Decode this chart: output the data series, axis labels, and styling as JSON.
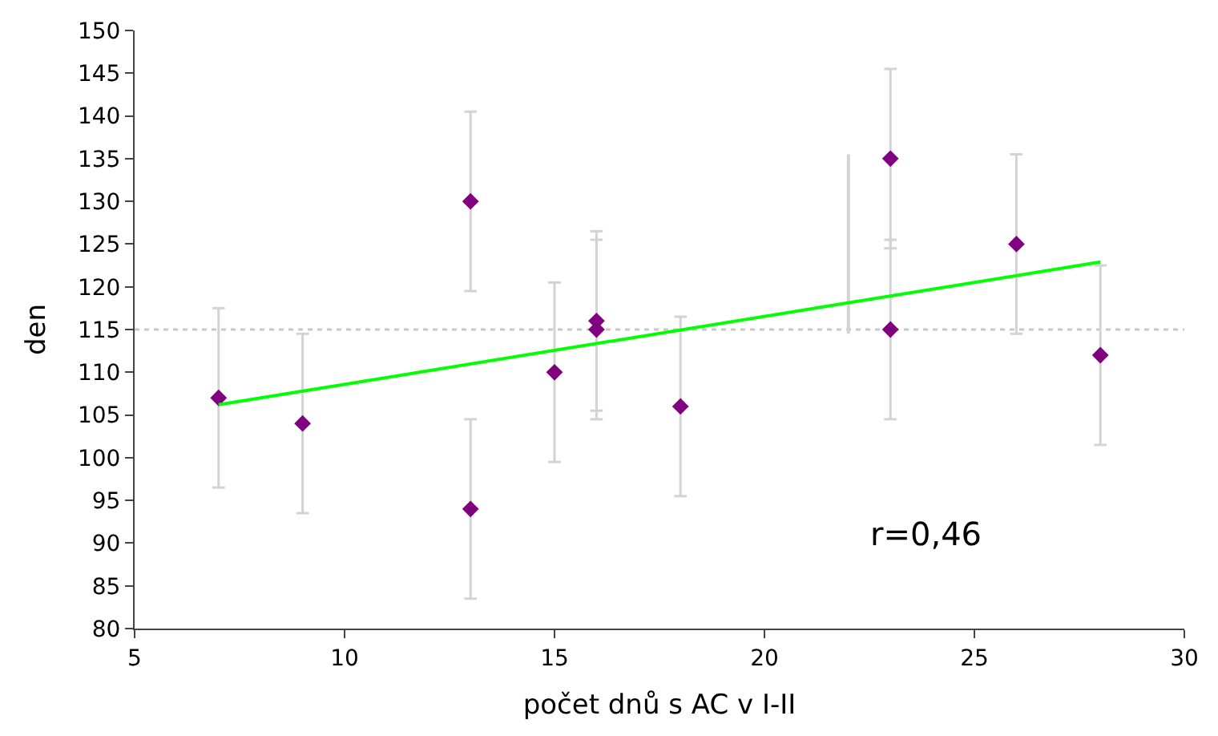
{
  "chart_data": {
    "type": "scatter",
    "xlabel": "počet dnů s AC v I-II",
    "ylabel": "den",
    "x": [
      7,
      9,
      13,
      13,
      15,
      16,
      16,
      18,
      23,
      23,
      26,
      28
    ],
    "series": [
      {
        "color": "#800080",
        "marker": "diamond",
        "values": [
          107,
          104,
          130,
          94,
          110,
          116,
          115,
          106,
          135,
          115,
          125,
          112
        ],
        "errors": [
          [
            96.5,
            117.5
          ],
          [
            93.5,
            114.5
          ],
          [
            119.5,
            140.5
          ],
          [
            83.5,
            104.5
          ],
          [
            99.5,
            120.5
          ],
          [
            105.5,
            126.5
          ],
          [
            104.5,
            125.5
          ],
          [
            95.5,
            116.5
          ],
          [
            124.5,
            145.5
          ],
          [
            104.5,
            125.5
          ],
          [
            114.5,
            135.5
          ],
          [
            101.5,
            122.5
          ]
        ]
      },
      {
        "type": "line",
        "color": "#d3d3d3",
        "x": [
          22,
          22
        ],
        "values": [
          114.5,
          135.5
        ]
      },
      {
        "type": "line",
        "color": "#00ff00",
        "x": [
          7,
          28
        ],
        "values": [
          106.2,
          122.9
        ]
      }
    ],
    "ref_lines": [
      {
        "axis": "y",
        "value": 115,
        "color": "#c8c8c8",
        "line_style": "dotted"
      }
    ],
    "annotations": [
      "r=0,46"
    ],
    "xlim": [
      5,
      30
    ],
    "xticks": [
      5,
      10,
      15,
      20,
      25,
      30
    ],
    "ylim": [
      80,
      150
    ],
    "yticks": [
      80,
      85,
      90,
      95,
      100,
      105,
      110,
      115,
      120,
      125,
      130,
      135,
      140,
      145,
      150
    ],
    "grid": false
  }
}
